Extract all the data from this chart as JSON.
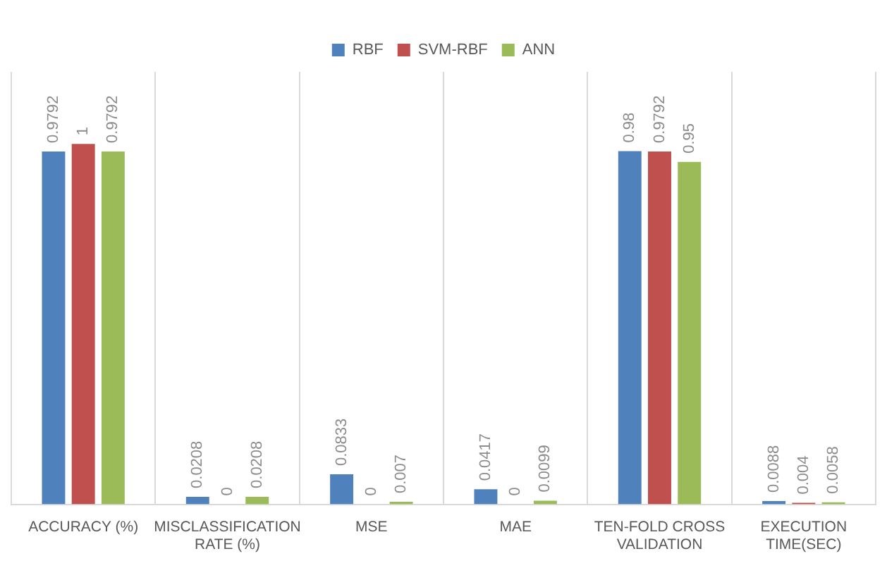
{
  "chart_data": {
    "type": "bar",
    "categories": [
      "ACCURACY (%)",
      "MISCLASSIFICATION RATE (%)",
      "MSE",
      "MAE",
      "TEN-FOLD CROSS VALIDATION",
      "EXECUTION TIME(SEC)"
    ],
    "series": [
      {
        "name": "RBF",
        "color": "#4f81bd",
        "values": [
          0.9792,
          0.0208,
          0.0833,
          0.0417,
          0.98,
          0.0088
        ]
      },
      {
        "name": "SVM-RBF",
        "color": "#c0504d",
        "values": [
          1,
          0,
          0,
          0,
          0.9792,
          0.004
        ]
      },
      {
        "name": "ANN",
        "color": "#9bbb59",
        "values": [
          0.9792,
          0.0208,
          0.007,
          0.0099,
          0.95,
          0.0058
        ]
      }
    ],
    "data_labels": true,
    "grid": "x",
    "legend": "top",
    "tick_labels": "x"
  }
}
